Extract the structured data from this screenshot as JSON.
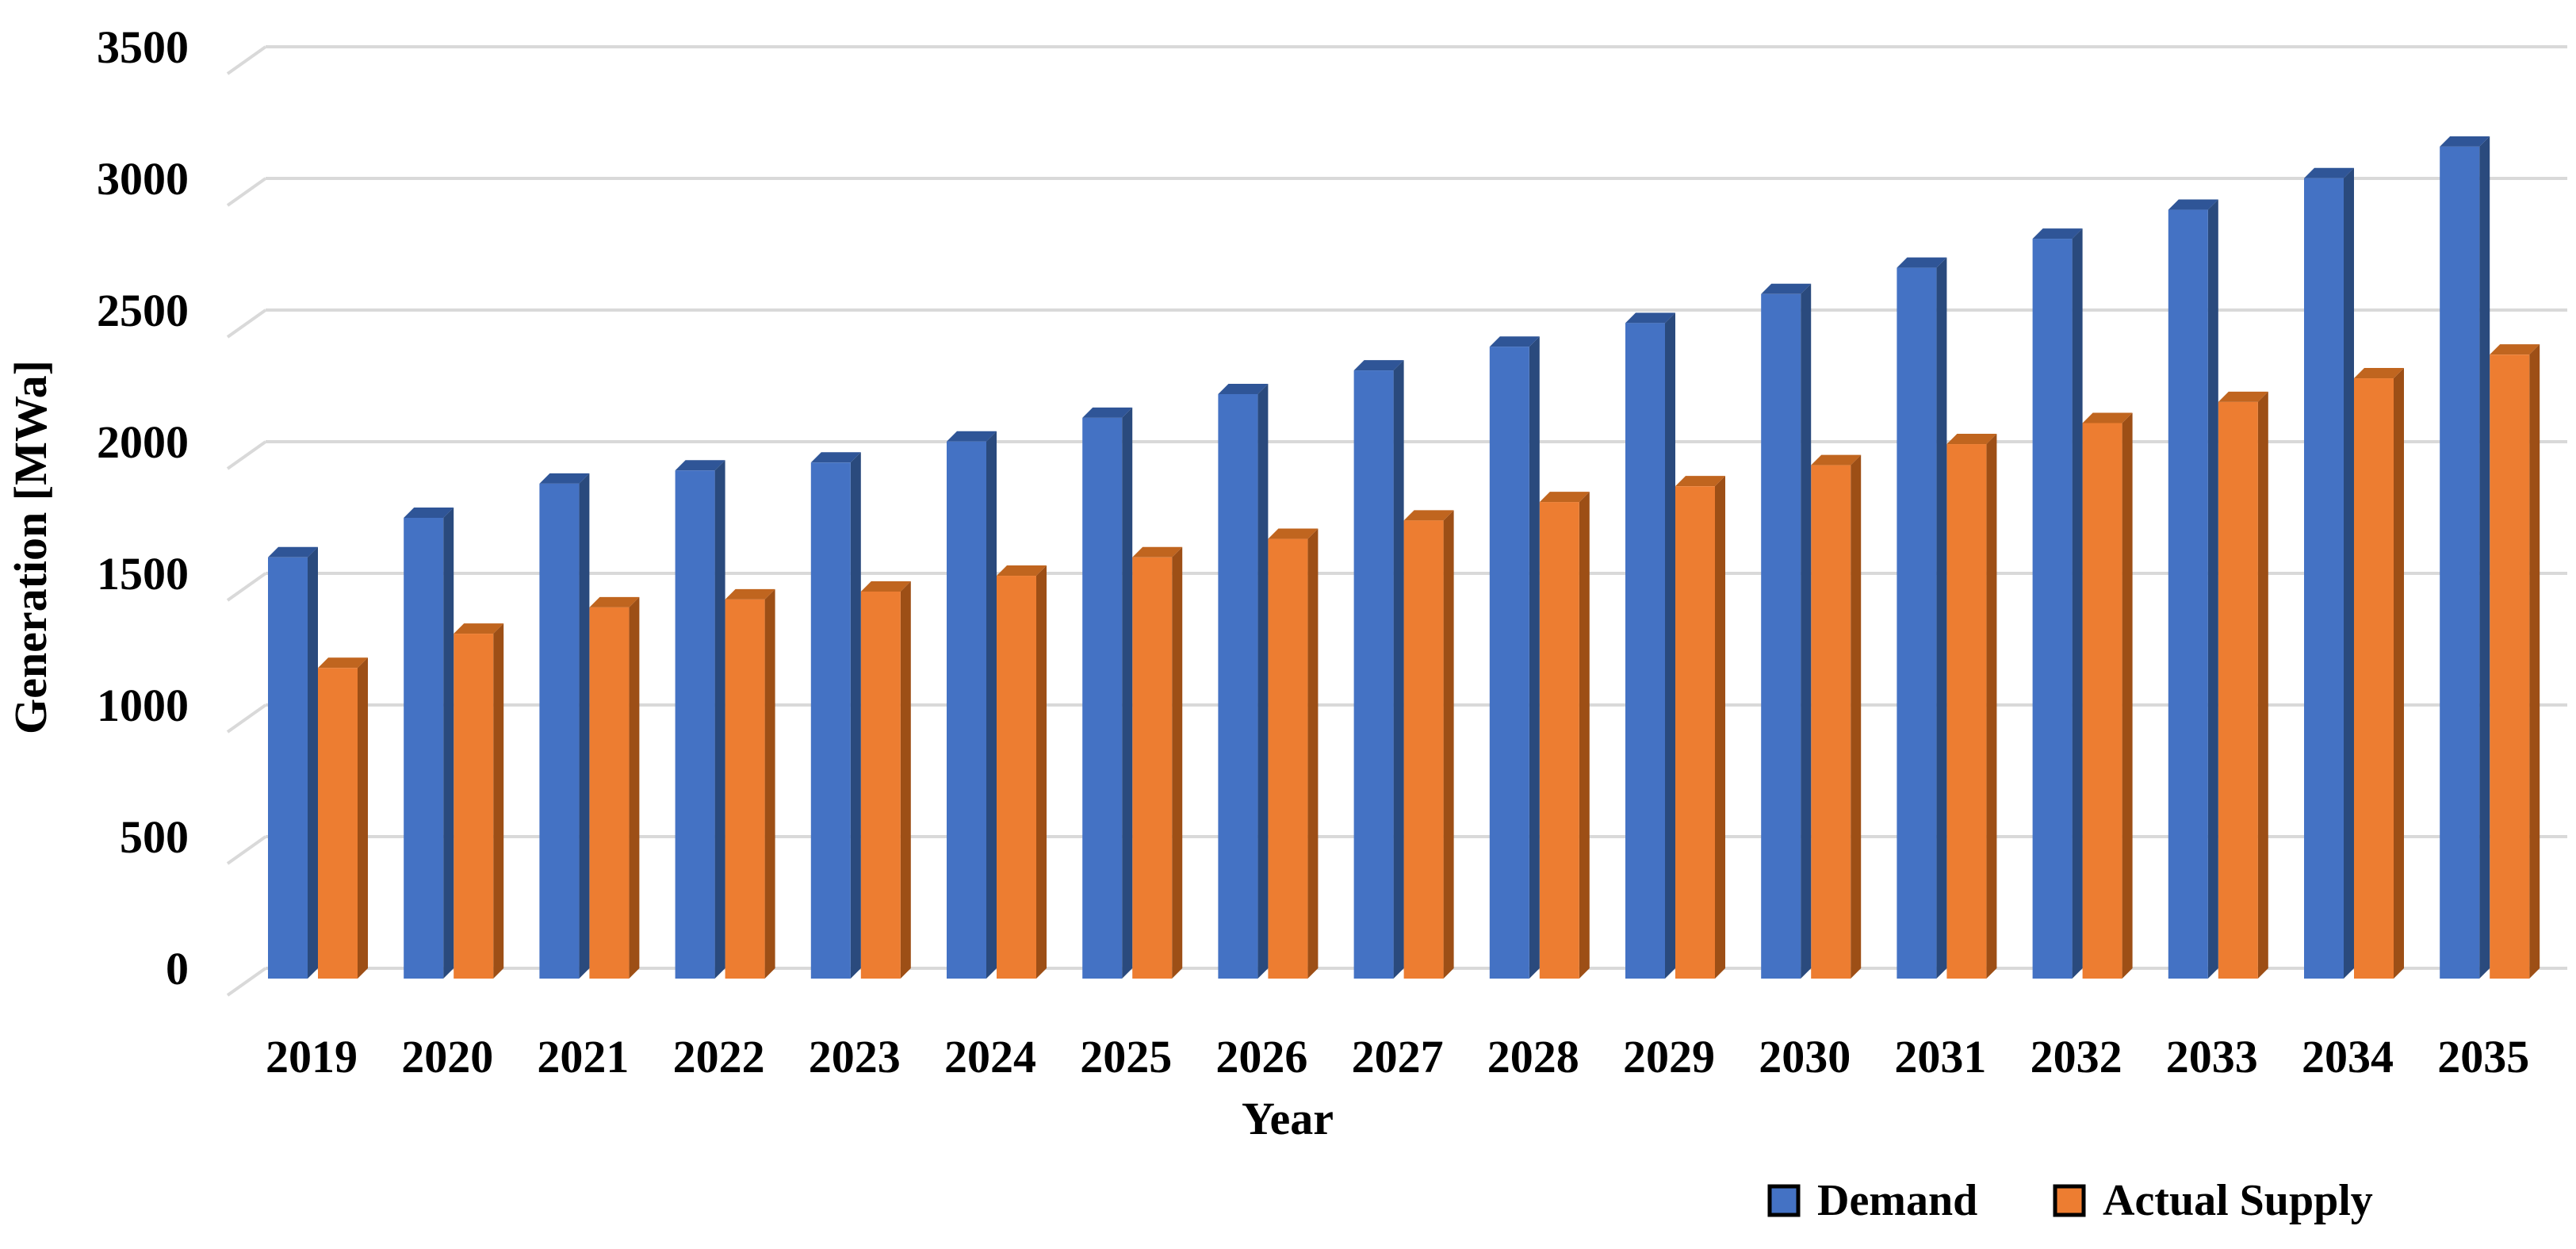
{
  "chart_data": {
    "type": "bar",
    "style": "3d-clustered-column",
    "title": "",
    "xlabel": "Year",
    "ylabel": "Generation [MWa]",
    "categories": [
      "2019",
      "2020",
      "2021",
      "2022",
      "2023",
      "2024",
      "2025",
      "2026",
      "2027",
      "2028",
      "2029",
      "2030",
      "2031",
      "2032",
      "2033",
      "2034",
      "2035"
    ],
    "series": [
      {
        "name": "Demand",
        "color": "#4472C4",
        "side_color": "#2A4A7D",
        "top_color": "#2F5597",
        "values": [
          1600,
          1750,
          1880,
          1930,
          1960,
          2040,
          2130,
          2220,
          2310,
          2400,
          2490,
          2600,
          2700,
          2810,
          2920,
          3040,
          3160
        ]
      },
      {
        "name": "Actual Supply",
        "color": "#ED7D31",
        "side_color": "#9D4F16",
        "top_color": "#C0651F",
        "values": [
          1180,
          1310,
          1410,
          1440,
          1470,
          1530,
          1600,
          1670,
          1740,
          1810,
          1870,
          1950,
          2030,
          2110,
          2190,
          2280,
          2370
        ]
      }
    ],
    "ylim": [
      0,
      3500
    ],
    "ytick_step": 500,
    "yticks": [
      0,
      500,
      1000,
      1500,
      2000,
      2500,
      3000,
      3500
    ],
    "grid": true,
    "gridline_color": "#D9D9D9",
    "background_color": "#FFFFFF",
    "text_color": "#000000",
    "legend_position": "bottom-right",
    "legend_swatch_border_color": "#000000"
  }
}
